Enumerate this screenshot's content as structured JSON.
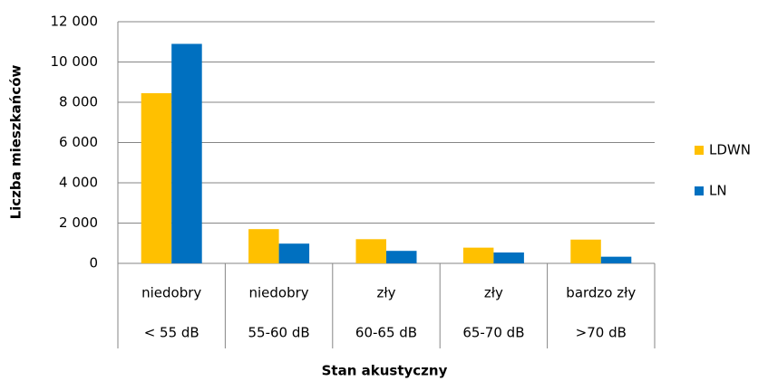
{
  "chart_data": {
    "type": "bar",
    "y_label": "Liczba mieszkańców",
    "x_label": "Stan akustyczny",
    "categories": [
      [
        "niedobry",
        "< 55 dB"
      ],
      [
        "niedobry",
        "55-60 dB"
      ],
      [
        "zły",
        "60-65 dB"
      ],
      [
        "zły",
        "65-70 dB"
      ],
      [
        "bardzo zły",
        ">70 dB"
      ]
    ],
    "series": [
      {
        "name": "LDWN",
        "color": "#ffc000",
        "values": [
          8450,
          1700,
          1200,
          780,
          1180
        ]
      },
      {
        "name": "LN",
        "color": "#0070c0",
        "values": [
          10900,
          980,
          620,
          540,
          330
        ]
      }
    ],
    "ylim": [
      0,
      12000
    ],
    "yticks": [
      0,
      {
        "value": 2000,
        "label": "2 000"
      },
      {
        "value": 4000,
        "label": "4 000"
      },
      {
        "value": 6000,
        "label": "6 000"
      },
      {
        "value": 8000,
        "label": "8 000"
      },
      {
        "value": 10000,
        "label": "10 000"
      },
      {
        "value": 12000,
        "label": "12 000"
      }
    ],
    "grid": true,
    "legend": "right"
  }
}
